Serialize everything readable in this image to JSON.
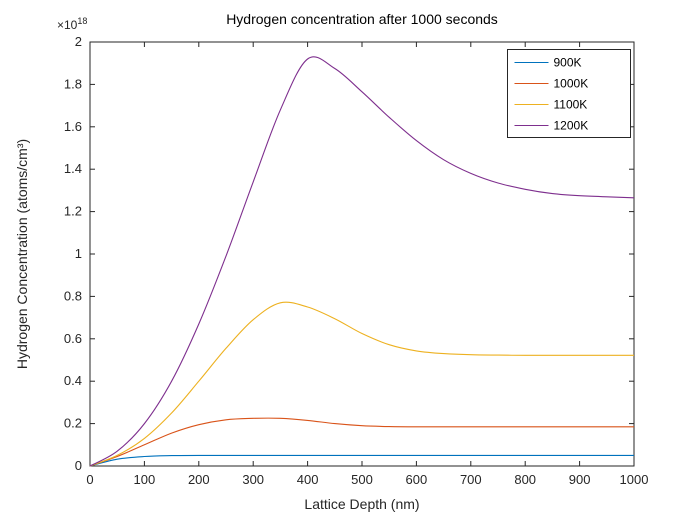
{
  "chart_data": {
    "type": "line",
    "title": "Hydrogen concentration after 1000 seconds",
    "xlabel": "Lattice Depth (nm)",
    "ylabel": "Hydrogen Concentration (atoms/cm³)",
    "y_scale_label": {
      "base": "×10",
      "exponent": "18"
    },
    "xlim": [
      0,
      1000
    ],
    "ylim": [
      0,
      2
    ],
    "grid": false,
    "legend_position": "northeast",
    "axis_color": "#262626",
    "background": "#FFFFFF",
    "xticks": [
      0,
      100,
      200,
      300,
      400,
      500,
      600,
      700,
      800,
      900,
      1000
    ],
    "xtick_labels": [
      "0",
      "100",
      "200",
      "300",
      "400",
      "500",
      "600",
      "700",
      "800",
      "900",
      "1000"
    ],
    "yticks": [
      0,
      0.2,
      0.4,
      0.6,
      0.8,
      1,
      1.2,
      1.4,
      1.6,
      1.8,
      2
    ],
    "ytick_labels": [
      "0",
      "0.2",
      "0.4",
      "0.6",
      "0.8",
      "1",
      "1.2",
      "1.4",
      "1.6",
      "1.8",
      "2"
    ],
    "y_unit_multiplier": 1e+18,
    "x": [
      0,
      50,
      100,
      150,
      200,
      250,
      300,
      350,
      400,
      450,
      500,
      550,
      600,
      650,
      700,
      750,
      800,
      850,
      900,
      950,
      1000
    ],
    "series": [
      {
        "name": "900K",
        "color": "#0072BD",
        "values": [
          0,
          0.032,
          0.045,
          0.049,
          0.05,
          0.05,
          0.05,
          0.05,
          0.05,
          0.05,
          0.05,
          0.05,
          0.05,
          0.05,
          0.05,
          0.05,
          0.05,
          0.05,
          0.05,
          0.05,
          0.05
        ]
      },
      {
        "name": "1000K",
        "color": "#D95319",
        "values": [
          0,
          0.045,
          0.1,
          0.155,
          0.195,
          0.218,
          0.225,
          0.225,
          0.215,
          0.2,
          0.19,
          0.186,
          0.185,
          0.185,
          0.185,
          0.185,
          0.185,
          0.185,
          0.185,
          0.185,
          0.185
        ]
      },
      {
        "name": "1100K",
        "color": "#EDB120",
        "values": [
          0,
          0.05,
          0.13,
          0.25,
          0.4,
          0.555,
          0.69,
          0.77,
          0.75,
          0.695,
          0.625,
          0.572,
          0.543,
          0.53,
          0.525,
          0.523,
          0.522,
          0.522,
          0.522,
          0.522,
          0.522
        ]
      },
      {
        "name": "1200K",
        "color": "#7E2F8E",
        "values": [
          0,
          0.07,
          0.2,
          0.4,
          0.67,
          0.99,
          1.34,
          1.68,
          1.92,
          1.875,
          1.765,
          1.645,
          1.535,
          1.445,
          1.38,
          1.335,
          1.305,
          1.285,
          1.275,
          1.27,
          1.265
        ]
      }
    ]
  }
}
